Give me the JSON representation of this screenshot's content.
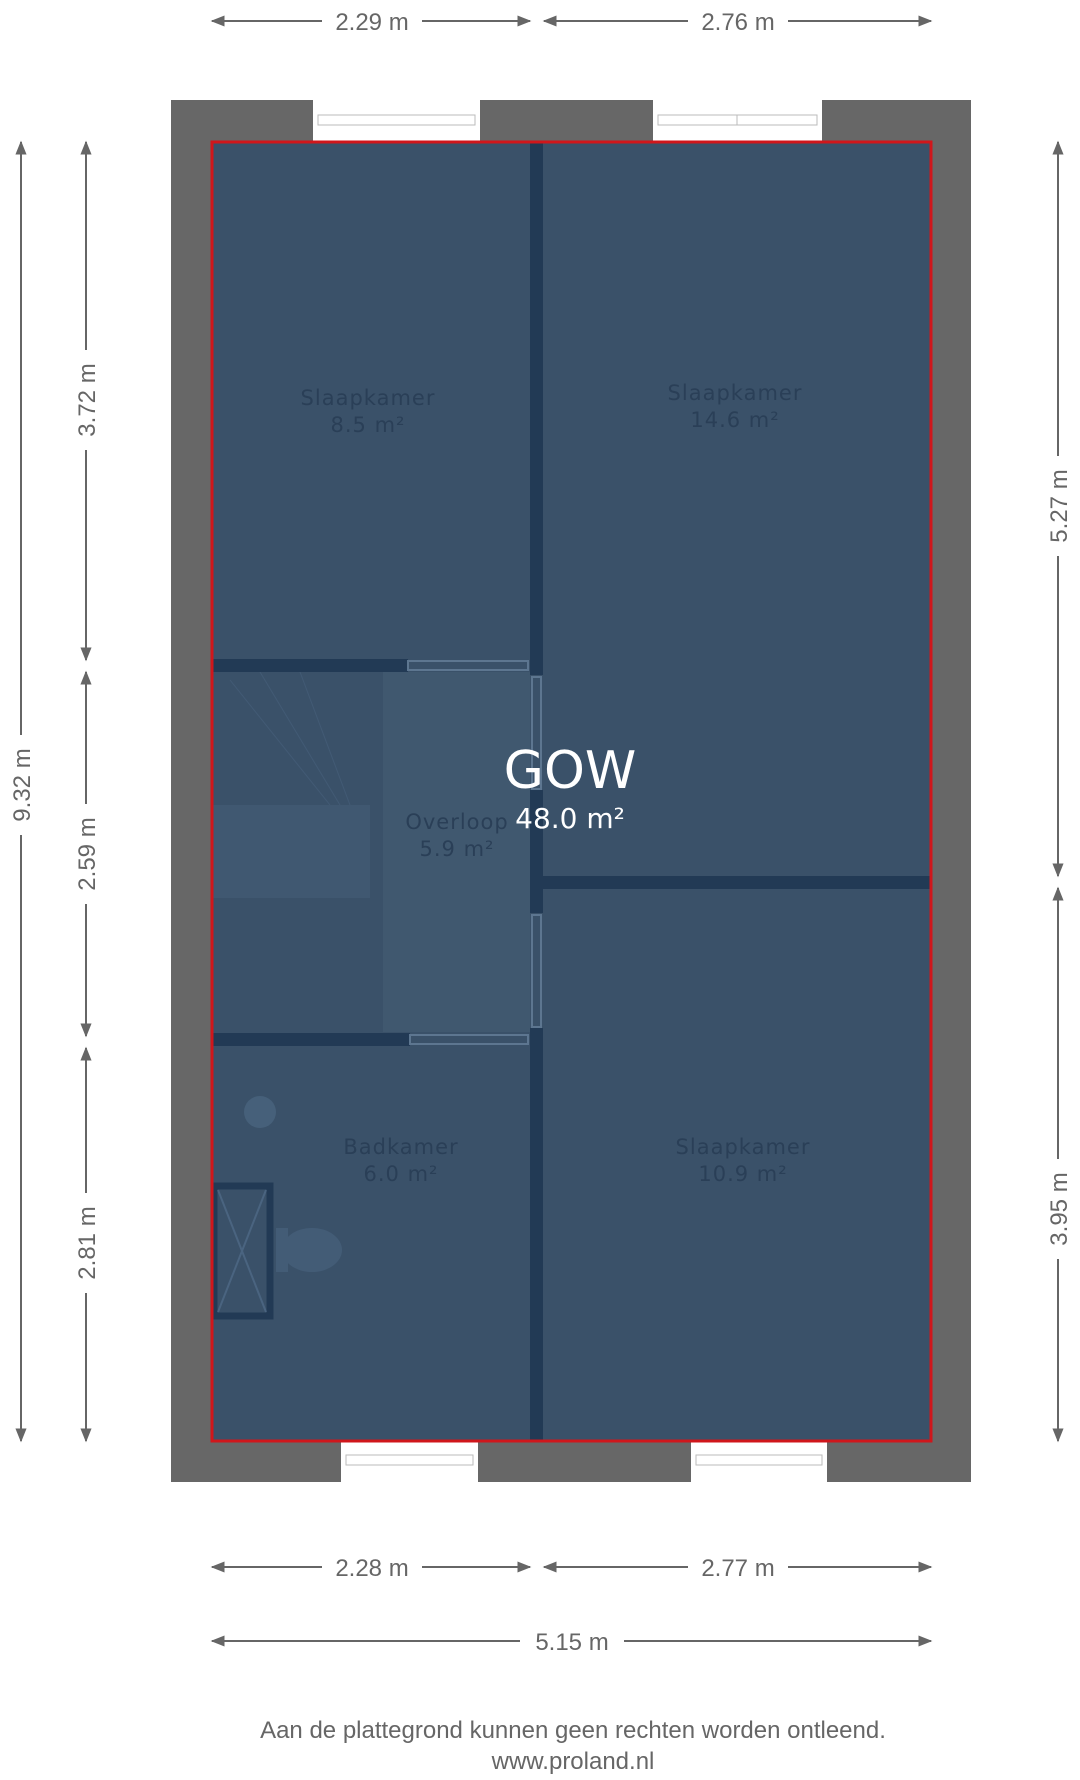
{
  "plan": {
    "title": "GOW",
    "total_area": "48.0 m²",
    "rooms": [
      {
        "name": "Slaapkamer",
        "area": "8.5 m²"
      },
      {
        "name": "Slaapkamer",
        "area": "14.6 m²"
      },
      {
        "name": "Overloop",
        "area": "5.9 m²"
      },
      {
        "name": "Badkamer",
        "area": "6.0 m²"
      },
      {
        "name": "Slaapkamer",
        "area": "10.9 m²"
      }
    ],
    "dimensions": {
      "top": [
        "2.29 m",
        "2.76 m"
      ],
      "bottom": [
        "2.28 m",
        "2.77 m"
      ],
      "bottom_total": "5.15 m",
      "left_total": "9.32 m",
      "left": [
        "3.72 m",
        "2.59 m",
        "2.81 m"
      ],
      "right": [
        "5.27 m",
        "3.95 m"
      ]
    },
    "colors": {
      "outline": "#d0161b",
      "room_fill": "#3a5169",
      "wall": "#676767",
      "inner_wall": "#223a55"
    }
  },
  "footer": {
    "disclaimer": "Aan de plattegrond kunnen geen rechten worden ontleend.",
    "website": "www.proland.nl"
  }
}
